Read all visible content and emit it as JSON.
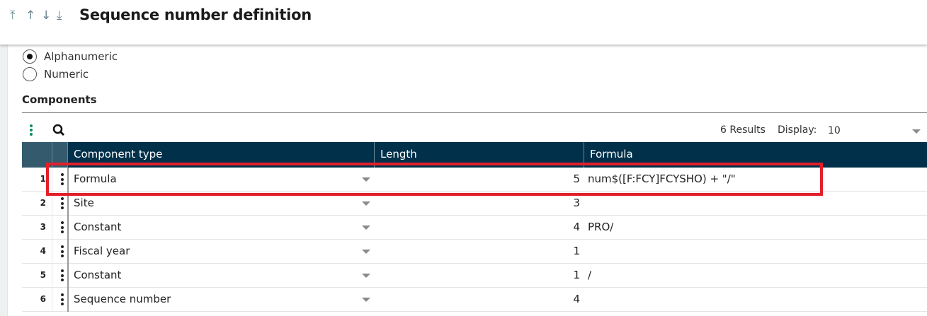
{
  "header": {
    "title": "Sequence number definition",
    "nav_icons": [
      "arrow-to-top-icon",
      "arrow-up-icon",
      "arrow-down-icon",
      "arrow-to-bottom-icon"
    ]
  },
  "type_options": [
    {
      "label": "Alphanumeric",
      "selected": true
    },
    {
      "label": "Numeric",
      "selected": false
    }
  ],
  "components": {
    "title": "Components",
    "results": "6 Results",
    "display_label": "Display:",
    "display_value": "10",
    "columns": [
      "Component type",
      "Length",
      "Formula"
    ],
    "rows": [
      {
        "n": "1",
        "type": "Formula",
        "length": "5",
        "formula": "num$([F:FCY]FCYSHO) + \"/\""
      },
      {
        "n": "2",
        "type": "Site",
        "length": "3",
        "formula": ""
      },
      {
        "n": "3",
        "type": "Constant",
        "length": "4",
        "formula": "PRO/"
      },
      {
        "n": "4",
        "type": "Fiscal year",
        "length": "1",
        "formula": ""
      },
      {
        "n": "5",
        "type": "Constant",
        "length": "1",
        "formula": "/"
      },
      {
        "n": "6",
        "type": "Sequence number",
        "length": "4",
        "formula": ""
      }
    ]
  },
  "colors": {
    "header_bg": "#01304a",
    "highlight": "#e31f2a",
    "accent": "#0a8a63"
  }
}
